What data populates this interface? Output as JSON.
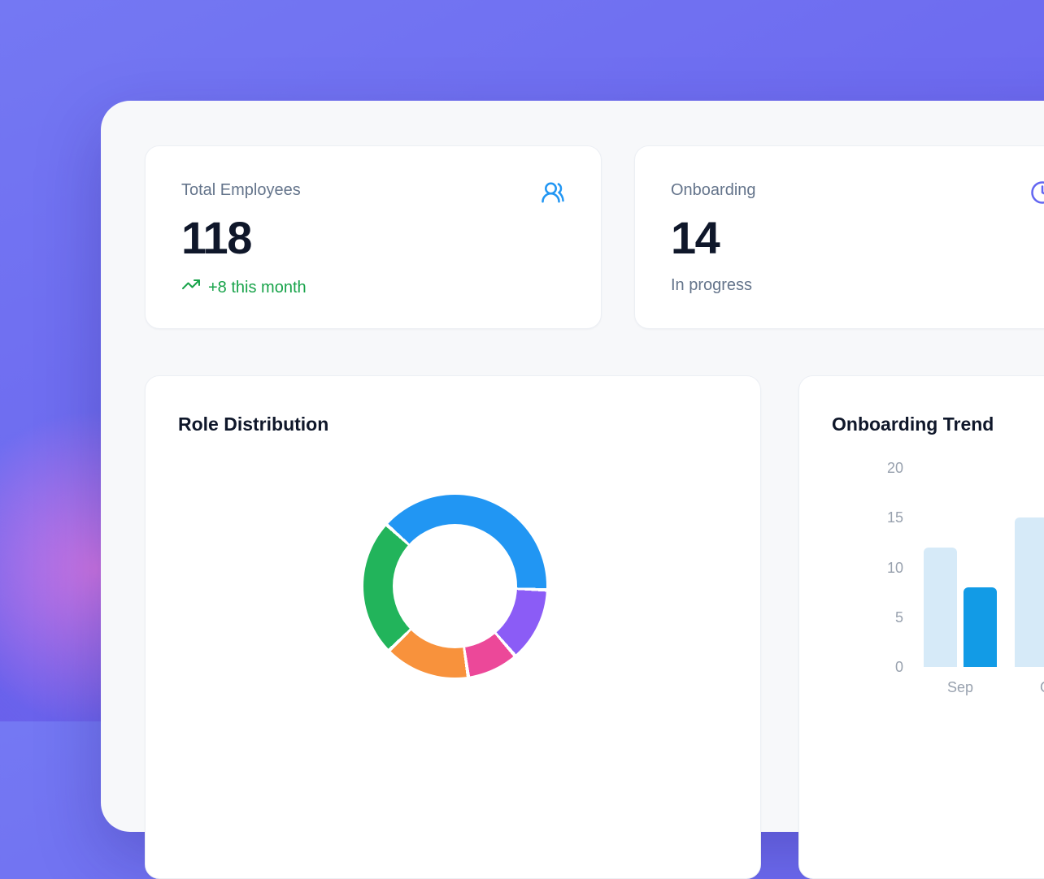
{
  "background": {
    "base_color": "#6D6BF0",
    "glow_color": "#E779E0"
  },
  "panel": {
    "bg_color": "#F7F8FA"
  },
  "stats": [
    {
      "label": "Total Employees",
      "value": "118",
      "delta": "+8 this month",
      "delta_color": "#18A34A",
      "icon": "users-icon",
      "icon_color": "#2196F3"
    },
    {
      "label": "Onboarding",
      "value": "14",
      "delta": "In progress",
      "delta_color": "#64748B",
      "icon": "clock-icon",
      "icon_color": "#6366F1"
    }
  ],
  "chart_data": [
    {
      "type": "pie",
      "variant": "donut",
      "title": "Role Distribution",
      "start_angle_deg": -48,
      "direction": "clockwise",
      "legend": "none",
      "segments": [
        {
          "name": "blue-segment",
          "color": "#2196F3",
          "percent": 39
        },
        {
          "name": "purple-segment",
          "color": "#8B5CF6",
          "percent": 13
        },
        {
          "name": "pink-segment",
          "color": "#EC4899",
          "percent": 9
        },
        {
          "name": "orange-segment",
          "color": "#F8923C",
          "percent": 15
        },
        {
          "name": "green-segment",
          "color": "#22B45B",
          "percent": 24
        }
      ]
    },
    {
      "type": "bar",
      "title": "Onboarding Trend",
      "categories": [
        "Sep",
        "Oct"
      ],
      "series": [
        {
          "name": "light-series",
          "color": "#D6EAF8",
          "values": [
            12,
            15
          ]
        },
        {
          "name": "dark-series",
          "color": "#129BE6",
          "values": [
            8,
            null
          ]
        }
      ],
      "ylim": [
        0,
        20
      ],
      "yticks": [
        0,
        5,
        10,
        15,
        20
      ],
      "grid": false,
      "legend": "none",
      "axis_color": "#98A1AE"
    }
  ]
}
